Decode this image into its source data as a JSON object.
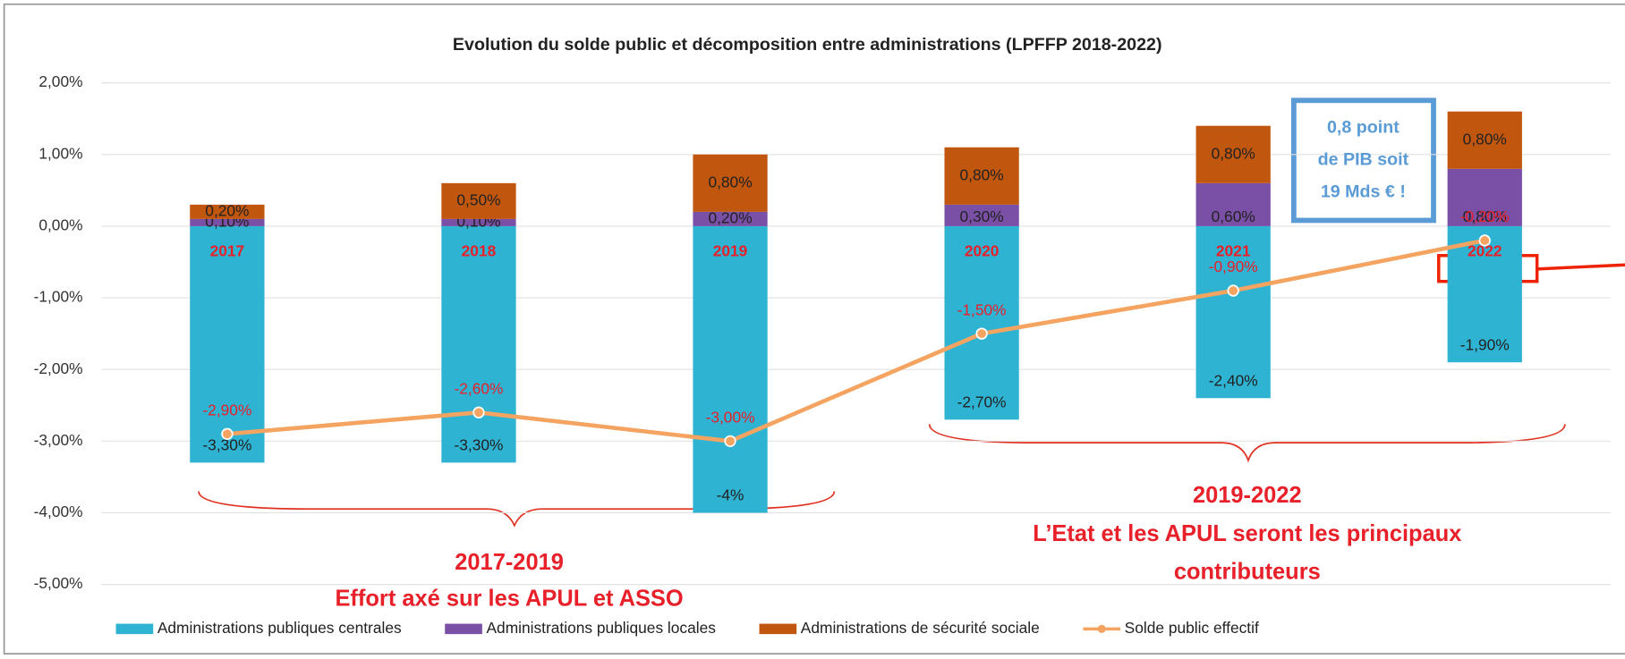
{
  "chart_data": {
    "type": "bar",
    "title": "Evolution du solde public et décomposition entre administrations (LPFFP 2018-2022)",
    "categories": [
      "2017",
      "2018",
      "2019",
      "2020",
      "2021",
      "2022"
    ],
    "stacked": true,
    "series": [
      {
        "name": "Administrations publiques centrales",
        "color": "#2fb3d3",
        "type": "bar",
        "values": [
          -3.3,
          -3.3,
          -4,
          -2.7,
          -2.4,
          -1.9
        ],
        "value_labels": [
          "-3,30%",
          "-3,30%",
          "-4%",
          "-2,70%",
          "-2,40%",
          "-1,90%"
        ]
      },
      {
        "name": "Administrations publiques locales",
        "color": "#7a4fa6",
        "type": "bar",
        "values": [
          0.1,
          0.1,
          0.2,
          0.3,
          0.6,
          0.8
        ],
        "value_labels": [
          "0,10%",
          "0,10%",
          "0,20%",
          "0,30%",
          "0,60%",
          "0,80%"
        ]
      },
      {
        "name": "Administrations de sécurité sociale",
        "color": "#c1560f",
        "type": "bar",
        "values": [
          0.2,
          0.5,
          0.8,
          0.8,
          0.8,
          0.8
        ],
        "value_labels": [
          "0,20%",
          "0,50%",
          "0,80%",
          "0,80%",
          "0,80%",
          "0,80%"
        ]
      },
      {
        "name": "Solde public effectif",
        "color": "#f4a460",
        "type": "line",
        "values": [
          -2.9,
          -2.6,
          -3.0,
          -1.5,
          -0.9,
          -0.2
        ],
        "value_labels": [
          "-2,90%",
          "-2,60%",
          "-3,00%",
          "-1,50%",
          "-0,90%",
          "-0,20%"
        ]
      }
    ],
    "ylim": [
      -5,
      2
    ],
    "yticks": [
      {
        "value": -5,
        "label": "-5,00%"
      },
      {
        "value": -4,
        "label": "-4,00%"
      },
      {
        "value": -3,
        "label": "-3,00%"
      },
      {
        "value": -2,
        "label": "-2,00%"
      },
      {
        "value": -1,
        "label": "-1,00%"
      },
      {
        "value": 0,
        "label": "0,00%"
      },
      {
        "value": 1,
        "label": "1,00%"
      },
      {
        "value": 2,
        "label": "2,00%"
      }
    ],
    "grid": true,
    "legend": "bottom",
    "annotations": [
      {
        "lines": [
          "0,8 point",
          "de PIB soit",
          "19 Mds € !"
        ]
      },
      {
        "lines": [
          "2017-2019",
          "Effort axé sur les APUL et ASSO"
        ]
      },
      {
        "lines": [
          "2019-2022",
          "L’Etat et les APUL seront les principaux",
          "contributeurs"
        ]
      }
    ]
  }
}
